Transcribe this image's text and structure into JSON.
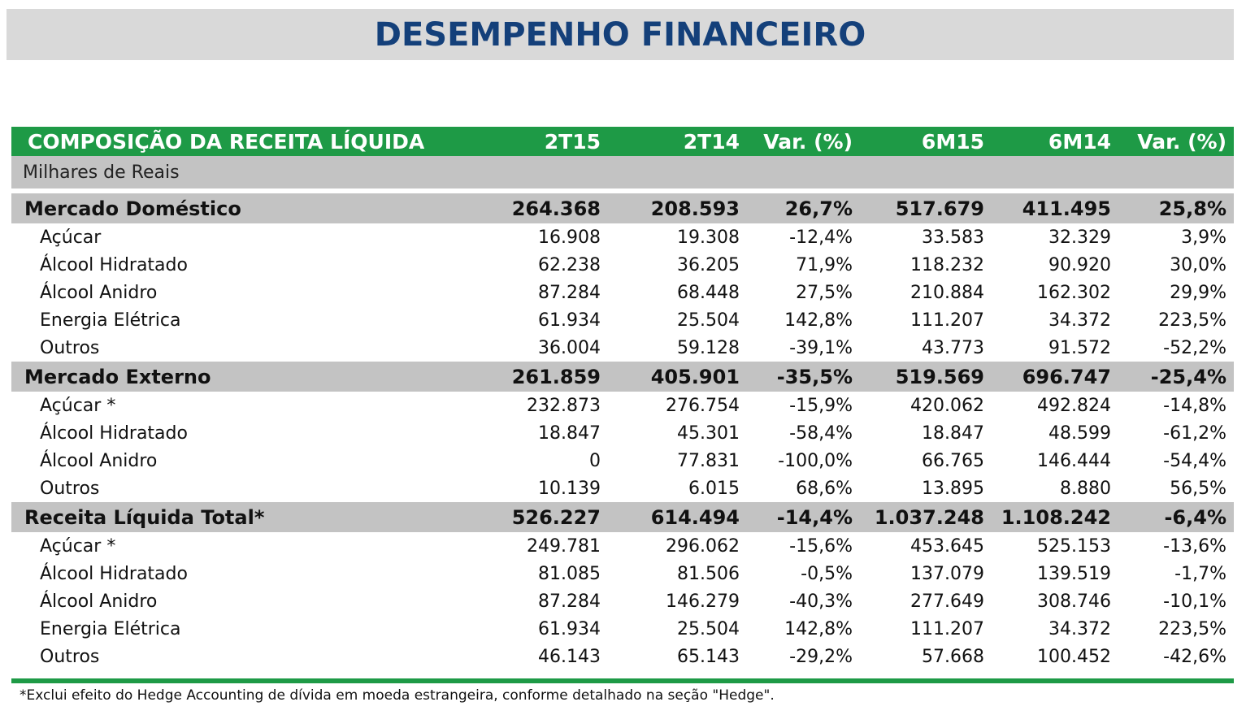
{
  "title": "DESEMPENHO FINANCEIRO",
  "table": {
    "header": {
      "label": "COMPOSIÇÃO DA RECEITA LÍQUIDA",
      "cols": [
        "2T15",
        "2T14",
        "Var. (%)",
        "6M15",
        "6M14",
        "Var. (%)"
      ]
    },
    "units": "Milhares de Reais",
    "groups": [
      {
        "label": "Mercado Doméstico",
        "values": [
          "264.368",
          "208.593",
          "26,7%",
          "517.679",
          "411.495",
          "25,8%"
        ],
        "items": [
          {
            "label": "Açúcar",
            "values": [
              "16.908",
              "19.308",
              "-12,4%",
              "33.583",
              "32.329",
              "3,9%"
            ]
          },
          {
            "label": "Álcool Hidratado",
            "values": [
              "62.238",
              "36.205",
              "71,9%",
              "118.232",
              "90.920",
              "30,0%"
            ]
          },
          {
            "label": "Álcool Anidro",
            "values": [
              "87.284",
              "68.448",
              "27,5%",
              "210.884",
              "162.302",
              "29,9%"
            ]
          },
          {
            "label": "Energia Elétrica",
            "values": [
              "61.934",
              "25.504",
              "142,8%",
              "111.207",
              "34.372",
              "223,5%"
            ]
          },
          {
            "label": "Outros",
            "values": [
              "36.004",
              "59.128",
              "-39,1%",
              "43.773",
              "91.572",
              "-52,2%"
            ]
          }
        ]
      },
      {
        "label": "Mercado Externo",
        "values": [
          "261.859",
          "405.901",
          "-35,5%",
          "519.569",
          "696.747",
          "-25,4%"
        ],
        "items": [
          {
            "label": "Açúcar *",
            "values": [
              "232.873",
              "276.754",
              "-15,9%",
              "420.062",
              "492.824",
              "-14,8%"
            ]
          },
          {
            "label": "Álcool Hidratado",
            "values": [
              "18.847",
              "45.301",
              "-58,4%",
              "18.847",
              "48.599",
              "-61,2%"
            ]
          },
          {
            "label": "Álcool Anidro",
            "values": [
              "0",
              "77.831",
              "-100,0%",
              "66.765",
              "146.444",
              "-54,4%"
            ]
          },
          {
            "label": "Outros",
            "values": [
              "10.139",
              "6.015",
              "68,6%",
              "13.895",
              "8.880",
              "56,5%"
            ]
          }
        ]
      },
      {
        "label": "Receita Líquida Total*",
        "values": [
          "526.227",
          "614.494",
          "-14,4%",
          "1.037.248",
          "1.108.242",
          "-6,4%"
        ],
        "items": [
          {
            "label": "Açúcar *",
            "values": [
              "249.781",
              "296.062",
              "-15,6%",
              "453.645",
              "525.153",
              "-13,6%"
            ]
          },
          {
            "label": "Álcool Hidratado",
            "values": [
              "81.085",
              "81.506",
              "-0,5%",
              "137.079",
              "139.519",
              "-1,7%"
            ]
          },
          {
            "label": "Álcool Anidro",
            "values": [
              "87.284",
              "146.279",
              "-40,3%",
              "277.649",
              "308.746",
              "-10,1%"
            ]
          },
          {
            "label": "Energia Elétrica",
            "values": [
              "61.934",
              "25.504",
              "142,8%",
              "111.207",
              "34.372",
              "223,5%"
            ]
          },
          {
            "label": "Outros",
            "values": [
              "46.143",
              "65.143",
              "-29,2%",
              "57.668",
              "100.452",
              "-42,6%"
            ]
          }
        ]
      }
    ]
  },
  "footnote": "*Exclui efeito do Hedge Accounting de dívida em moeda estrangeira, conforme detalhado na seção \"Hedge\".",
  "colors": {
    "title_text": "#14407a",
    "title_bg": "#d9d9d9",
    "header_bg": "#1e9a46",
    "group_bg": "#c3c3c3"
  }
}
